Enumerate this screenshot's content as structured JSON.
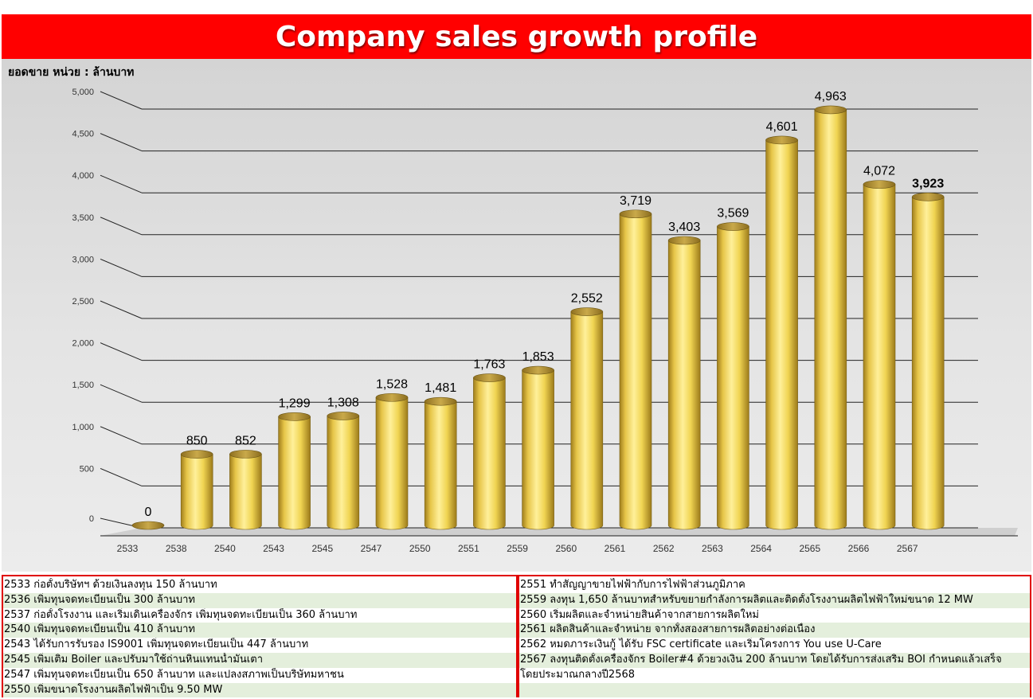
{
  "title": "Company sales growth profile",
  "unit_label": "ยอดขาย หน่วย : ล้านบาท",
  "colors": {
    "title_bg": "#ff0000",
    "bar": "#f2dc55",
    "highlight_label": "#1a1ad6",
    "notes_border": "#e00000",
    "stripe": "#e4efdc"
  },
  "chart_data": {
    "type": "bar",
    "style": "3d-cylinder",
    "title": "Company sales growth profile",
    "ylabel": "ยอดขาย หน่วย : ล้านบาท",
    "xlabel": "",
    "categories": [
      "2533",
      "2538",
      "2540",
      "2543",
      "2545",
      "2547",
      "2550",
      "2551",
      "2559",
      "2560",
      "2561",
      "2562",
      "2563",
      "2564",
      "2565",
      "2566",
      "2567"
    ],
    "values": [
      0,
      850,
      852,
      1299,
      1308,
      1528,
      1481,
      1763,
      1853,
      2552,
      3719,
      3403,
      3569,
      4601,
      4963,
      4072,
      3923
    ],
    "value_labels": [
      "0",
      "850",
      "852",
      "1,299",
      "1,308",
      "1,528",
      "1,481",
      "1,763",
      "1,853",
      "2,552",
      "3,719",
      "3,403",
      "3,569",
      "4,601",
      "4,963",
      "4,072",
      "3,923"
    ],
    "highlight_category": "2567",
    "ylim": [
      0,
      5000
    ],
    "yticks": [
      0,
      500,
      1000,
      1500,
      2000,
      2500,
      3000,
      3500,
      4000,
      4500,
      5000
    ],
    "ytick_labels": [
      "0",
      "500",
      "1,000",
      "1,500",
      "2,000",
      "2,500",
      "3,000",
      "3,500",
      "4,000",
      "4,500",
      "5,000"
    ],
    "grid": true,
    "legend": "none"
  },
  "notes": {
    "left": [
      "2533 ก่อตั้งบริษัทฯ ด้วยเงินลงทุน 150 ล้านบาท",
      "2536 เพิ่มทุนจดทะเบียนเป็น 300 ล้านบาท",
      "2537 ก่อตั้งโรงงาน และเริ่มเดินเครื่องจักร เพิ่มทุนจดทะเบียนเป็น 360 ล้านบาท",
      "2540 เพิ่มทุนจดทะเบียนเป็น 410 ล้านบาท",
      "2543 ได้รับการรับรอง IS9001 เพิ่มทุนจดทะเบียนเป็น 447 ล้านบาท",
      "2545 เพิ่มเติม Boiler และปรับมาใช้ถ่านหินแทนน้ำมันเตา",
      "2547 เพิ่มทุนจดทะเบียนเป็น 650 ล้านบาท และแปลงสภาพเป็นบริษัทมหาชน",
      "2550 เพิ่มขนาดโรงงานผลิตไฟฟ้าเป็น 9.50 MW"
    ],
    "right": [
      "2551 ทำสัญญาขายไฟฟ้ากับการไฟฟ้าส่วนภูมิภาค",
      "2559 ลงทุน 1,650 ล้านบาทสำหรับขยายกำลังการผลิตและติดตั้งโรงงานผลิตไฟฟ้าใหม่ขนาด 12 MW",
      "2560 เริ่มผลิตและจำหน่ายสินค้าจากสายการผลิตใหม่",
      "2561 ผลิตสินค้าและจำหน่าย จากทั้งสองสายการผลิตอย่างต่อเนื่อง",
      "2562 หมดภาระเงินกู้ ได้รับ FSC certificate และเริ่มโครงการ You use U-Care",
      "2567 ลงทุนติดตั้งเครื่องจักร Boiler#4 ด้วยวงเงิน 200 ล้านบาท โดยได้รับการส่งเสริม BOI กำหนดแล้วเสร็จ",
      "โดยประมาณกลางปี2568",
      ""
    ]
  }
}
